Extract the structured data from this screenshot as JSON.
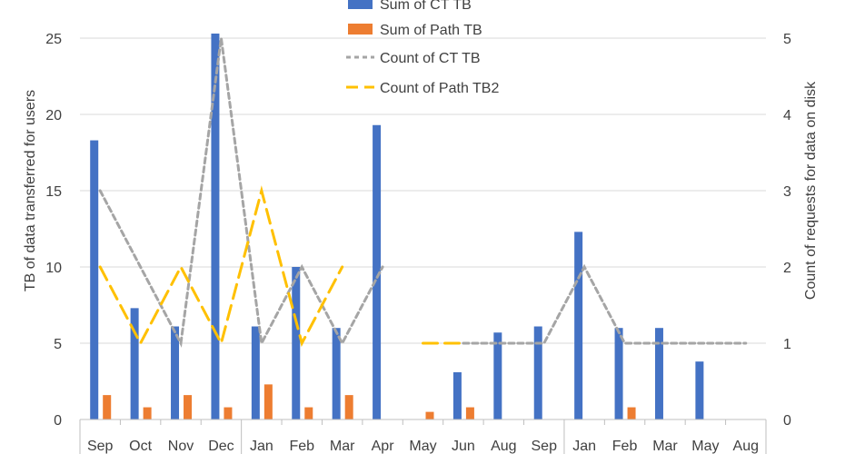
{
  "chart_data": {
    "type": "bar",
    "categories": [
      "Sep",
      "Oct",
      "Nov",
      "Dec",
      "Jan",
      "Feb",
      "Mar",
      "Apr",
      "May",
      "Jun",
      "Aug",
      "Sep",
      "Jan",
      "Feb",
      "Mar",
      "May",
      "Aug"
    ],
    "ylabel": "TB of data transferred for users",
    "y2label": "Count of requests for data on disk",
    "ylim": [
      0,
      25
    ],
    "y2lim": [
      0,
      5
    ],
    "yticks": [
      0,
      5,
      10,
      15,
      20,
      25
    ],
    "y2ticks": [
      0,
      1,
      2,
      3,
      4,
      5
    ],
    "grid": true,
    "legend_position": "top-center",
    "series": [
      {
        "name": "Sum of CT TB",
        "kind": "bar",
        "axis": "left",
        "color": "#4472C4",
        "values": [
          18.3,
          7.3,
          6.1,
          25.3,
          6.1,
          10.0,
          6.0,
          19.3,
          null,
          3.1,
          5.7,
          6.1,
          12.3,
          6.0,
          6.0,
          3.8,
          null
        ]
      },
      {
        "name": "Sum of Path TB",
        "kind": "bar",
        "axis": "left",
        "color": "#ED7D31",
        "values": [
          1.6,
          0.8,
          1.6,
          0.8,
          2.3,
          0.8,
          1.6,
          null,
          0.5,
          0.8,
          null,
          null,
          null,
          0.8,
          null,
          null,
          null
        ]
      },
      {
        "name": "Count of CT TB",
        "kind": "line",
        "axis": "right",
        "color": "#A5A5A5",
        "dash": "short",
        "values": [
          3,
          2,
          1,
          5,
          1,
          2,
          1,
          2,
          null,
          1,
          1,
          1,
          2,
          1,
          1,
          1,
          1
        ]
      },
      {
        "name": "Count of Path TB2",
        "kind": "line",
        "axis": "right",
        "color": "#FFC000",
        "dash": "long",
        "values": [
          2,
          1,
          2,
          1,
          3,
          1,
          2,
          null,
          1,
          1,
          null,
          null,
          null,
          null,
          null,
          null,
          null
        ]
      }
    ]
  }
}
